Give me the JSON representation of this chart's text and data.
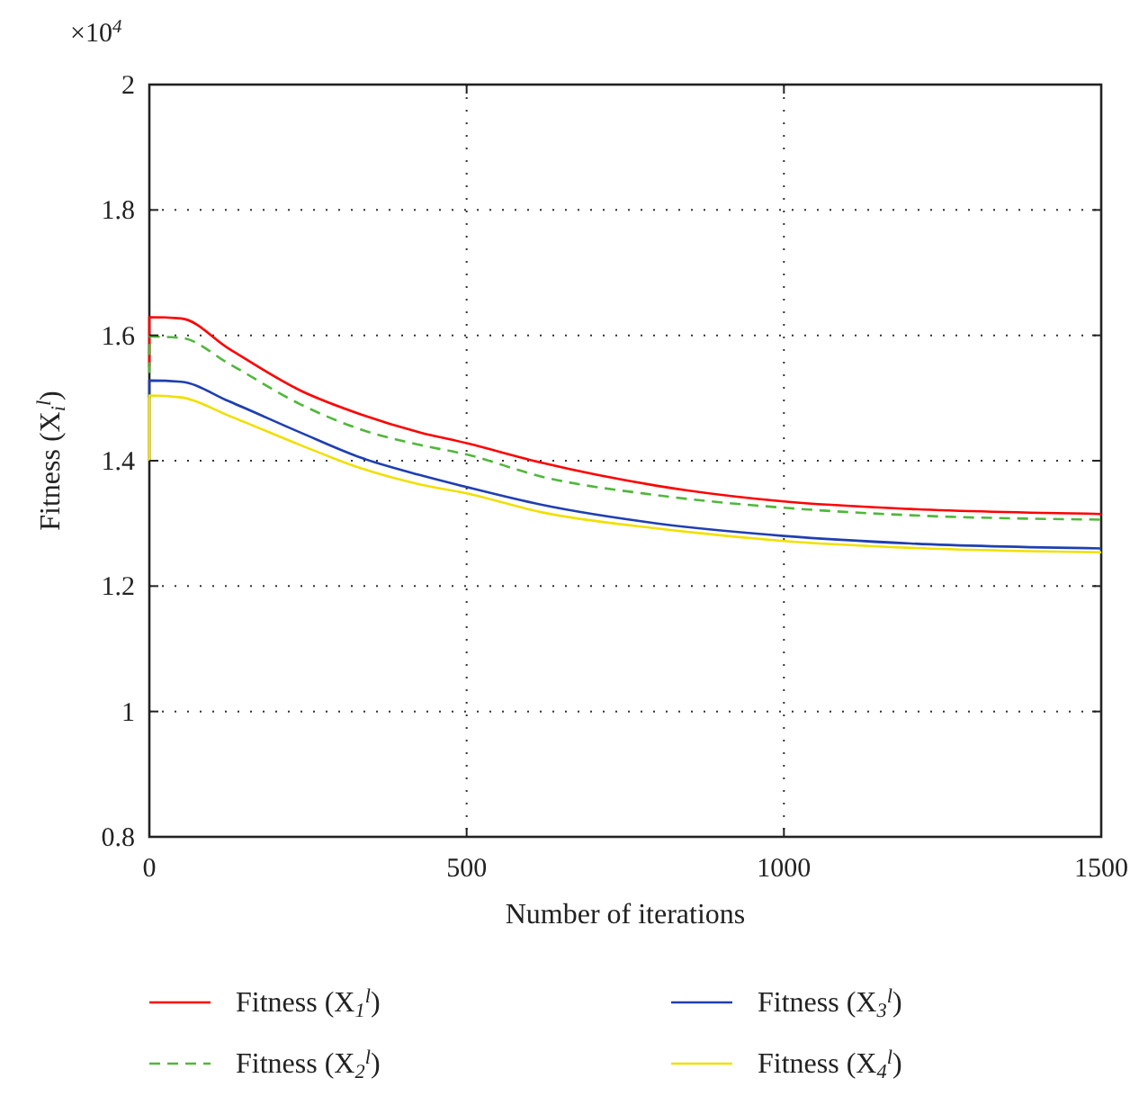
{
  "chart_data": {
    "type": "line",
    "xlabel": "Number of iterations",
    "ylabel": "Fitness (X$_{i}$$^{l}$)",
    "annotations": [
      "×10$^{4}$"
    ],
    "xlim": [
      0,
      1500
    ],
    "xticks": [
      0,
      500,
      1000,
      1500
    ],
    "ylim": [
      0.8,
      2
    ],
    "yticks": [
      0.8,
      1,
      1.2,
      1.4,
      1.6,
      1.8,
      2
    ],
    "grid": true,
    "legend": "bottom",
    "x": [
      0,
      0,
      50,
      125,
      238,
      333,
      427,
      500,
      617,
      800,
      1000,
      1200,
      1500
    ],
    "series": [
      {
        "name": "Fitness (X$_{1}$$^{l}$)",
        "color": "#ff0000",
        "line_style": "solid",
        "values": [
          1.55,
          1.629,
          1.627,
          1.579,
          1.512,
          1.474,
          1.445,
          1.428,
          1.397,
          1.36,
          1.335,
          1.323,
          1.315
        ]
      },
      {
        "name": "Fitness (X$_{2}$$^{l}$)",
        "color": "#4fb83a",
        "line_style": "dashed",
        "values": [
          1.54,
          1.598,
          1.596,
          1.555,
          1.49,
          1.45,
          1.425,
          1.41,
          1.375,
          1.345,
          1.325,
          1.313,
          1.306
        ]
      },
      {
        "name": "Fitness (X$_{3}$$^{l}$)",
        "color": "#1f3fb0",
        "line_style": "solid",
        "values": [
          1.5,
          1.528,
          1.526,
          1.495,
          1.445,
          1.405,
          1.377,
          1.358,
          1.33,
          1.3,
          1.28,
          1.268,
          1.26
        ]
      },
      {
        "name": "Fitness (X$_{4}$$^{l}$)",
        "color": "#f0e000",
        "line_style": "solid",
        "values": [
          1.4,
          1.504,
          1.501,
          1.472,
          1.425,
          1.388,
          1.362,
          1.348,
          1.318,
          1.292,
          1.272,
          1.261,
          1.254
        ]
      }
    ]
  }
}
